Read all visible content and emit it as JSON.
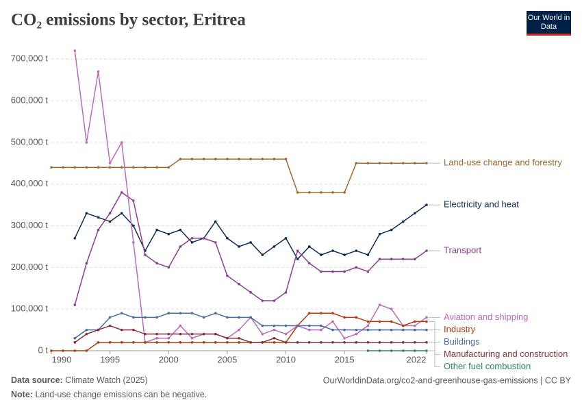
{
  "chart_data": {
    "type": "line",
    "title": "CO₂ emissions by sector, Eritrea",
    "logo": "Our World in Data",
    "source_label": "Data source:",
    "source": "Climate Watch (2025)",
    "url": "OurWorldinData.org/co2-and-greenhouse-gas-emissions | CC BY",
    "note_label": "Note:",
    "note": "Land-use change emissions can be negative.",
    "x": [
      1990,
      1991,
      1992,
      1993,
      1994,
      1995,
      1996,
      1997,
      1998,
      1999,
      2000,
      2001,
      2002,
      2003,
      2004,
      2005,
      2006,
      2007,
      2008,
      2009,
      2010,
      2011,
      2012,
      2013,
      2014,
      2015,
      2016,
      2017,
      2018,
      2019,
      2020,
      2021,
      2022
    ],
    "xlim": [
      1990,
      2022
    ],
    "xticks": [
      1990,
      1995,
      2000,
      2005,
      2010,
      2015,
      2022
    ],
    "ylim": [
      0,
      730000
    ],
    "yticks": [
      {
        "value": 0,
        "label": "0 t"
      },
      {
        "value": 100000,
        "label": "100,000 t"
      },
      {
        "value": 200000,
        "label": "200,000 t"
      },
      {
        "value": 300000,
        "label": "300,000 t"
      },
      {
        "value": 400000,
        "label": "400,000 t"
      },
      {
        "value": 500000,
        "label": "500,000 t"
      },
      {
        "value": 600000,
        "label": "600,000 t"
      },
      {
        "value": 700000,
        "label": "700,000 t"
      }
    ],
    "grid": true,
    "series": [
      {
        "name": "Land-use change and forestry",
        "color": "#a2682f",
        "values": [
          440000,
          440000,
          440000,
          440000,
          440000,
          440000,
          440000,
          440000,
          440000,
          440000,
          440000,
          460000,
          460000,
          460000,
          460000,
          460000,
          460000,
          460000,
          460000,
          460000,
          460000,
          380000,
          380000,
          380000,
          380000,
          380000,
          450000,
          450000,
          450000,
          450000,
          450000,
          450000,
          450000
        ]
      },
      {
        "name": "Electricity and heat",
        "color": "#0d2c54",
        "values": [
          null,
          null,
          270000,
          330000,
          320000,
          310000,
          330000,
          300000,
          240000,
          290000,
          280000,
          290000,
          260000,
          270000,
          310000,
          270000,
          250000,
          260000,
          230000,
          250000,
          270000,
          220000,
          250000,
          230000,
          240000,
          230000,
          240000,
          230000,
          280000,
          290000,
          310000,
          330000,
          350000
        ]
      },
      {
        "name": "Transport",
        "color": "#8b3d95",
        "values": [
          null,
          null,
          110000,
          210000,
          290000,
          330000,
          380000,
          360000,
          230000,
          210000,
          200000,
          250000,
          270000,
          270000,
          260000,
          180000,
          160000,
          140000,
          120000,
          120000,
          140000,
          240000,
          210000,
          190000,
          190000,
          190000,
          200000,
          190000,
          220000,
          220000,
          220000,
          220000,
          240000
        ]
      },
      {
        "name": "Aviation and shipping",
        "color": "#b96bbb",
        "values": [
          null,
          null,
          720000,
          500000,
          670000,
          450000,
          500000,
          260000,
          20000,
          30000,
          30000,
          60000,
          30000,
          40000,
          40000,
          30000,
          50000,
          80000,
          40000,
          50000,
          40000,
          60000,
          50000,
          50000,
          70000,
          30000,
          40000,
          60000,
          110000,
          100000,
          60000,
          60000,
          80000
        ]
      },
      {
        "name": "Industry",
        "color": "#b33a0c",
        "values": [
          0,
          0,
          0,
          0,
          20000,
          20000,
          20000,
          20000,
          20000,
          20000,
          20000,
          20000,
          20000,
          20000,
          20000,
          20000,
          20000,
          20000,
          20000,
          20000,
          20000,
          60000,
          90000,
          90000,
          90000,
          80000,
          80000,
          70000,
          70000,
          70000,
          60000,
          70000,
          70000
        ]
      },
      {
        "name": "Buildings",
        "color": "#4c6a9c",
        "values": [
          null,
          null,
          30000,
          50000,
          50000,
          80000,
          90000,
          80000,
          80000,
          80000,
          90000,
          90000,
          90000,
          80000,
          90000,
          80000,
          80000,
          80000,
          60000,
          60000,
          60000,
          60000,
          60000,
          60000,
          50000,
          50000,
          50000,
          50000,
          50000,
          50000,
          50000,
          50000,
          50000
        ]
      },
      {
        "name": "Manufacturing and construction",
        "color": "#883039",
        "values": [
          null,
          null,
          20000,
          40000,
          50000,
          60000,
          50000,
          50000,
          40000,
          40000,
          40000,
          40000,
          40000,
          40000,
          40000,
          30000,
          30000,
          20000,
          20000,
          30000,
          20000,
          20000,
          20000,
          20000,
          20000,
          20000,
          20000,
          20000,
          20000,
          20000,
          20000,
          20000,
          20000
        ]
      },
      {
        "name": "Other fuel combustion",
        "color": "#2c8465",
        "values": [
          null,
          null,
          null,
          null,
          null,
          null,
          null,
          null,
          null,
          null,
          null,
          null,
          null,
          null,
          null,
          null,
          null,
          null,
          null,
          null,
          null,
          null,
          null,
          null,
          null,
          null,
          null,
          0,
          0,
          0,
          0,
          0,
          0
        ]
      }
    ]
  }
}
